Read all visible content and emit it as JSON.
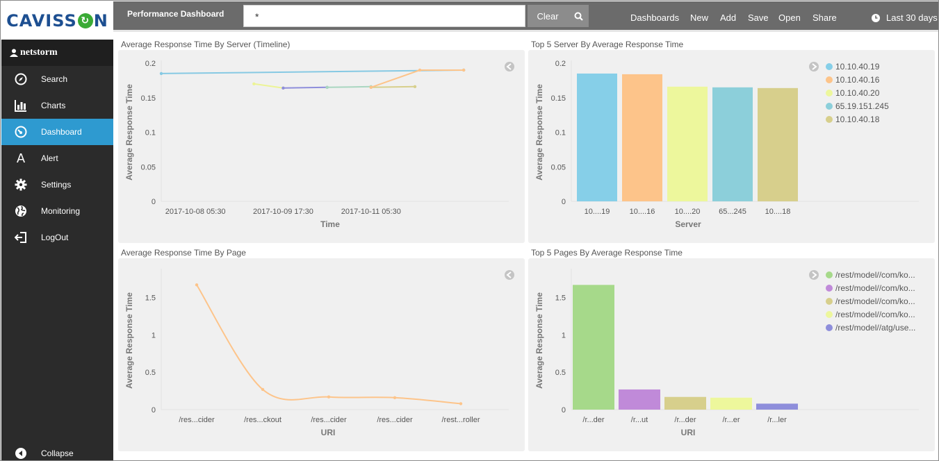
{
  "app": {
    "brand": "CAVISSON",
    "user": "netstorm"
  },
  "sidebar": {
    "items": [
      {
        "label": "Search",
        "icon": "compass-icon"
      },
      {
        "label": "Charts",
        "icon": "bar-chart-icon"
      },
      {
        "label": "Dashboard",
        "icon": "dashboard-icon",
        "active": true
      },
      {
        "label": "Alert",
        "icon": "alert-a-icon"
      },
      {
        "label": "Settings",
        "icon": "gear-icon"
      },
      {
        "label": "Monitoring",
        "icon": "globe-icon"
      },
      {
        "label": "LogOut",
        "icon": "logout-icon"
      }
    ],
    "collapse_label": "Collapse"
  },
  "topbar": {
    "title": "Performance Dashboard",
    "search_value": "*",
    "clear_label": "Clear",
    "links": [
      "Dashboards",
      "New",
      "Add",
      "Save",
      "Open",
      "Share"
    ],
    "time_range": "Last 30 days"
  },
  "colors": {
    "sidebar_bg": "#2b2b2b",
    "active_nav": "#2e9ad0",
    "topbar_bg": "#6b6b6b",
    "panel_bg": "#f0f0f0"
  },
  "panels": {
    "timeline": {
      "title": "Average Response Time By Server (Timeline)"
    },
    "top_servers": {
      "title": "Top 5 Server By Average Response Time"
    },
    "by_page": {
      "title": "Average Response Time By Page"
    },
    "top_pages": {
      "title": "Top 5 Pages By Average Response Time"
    }
  },
  "chart_data": [
    {
      "type": "line",
      "title": "Average Response Time By Server (Timeline)",
      "xlabel": "Time",
      "ylabel": "Average Response Time",
      "ylim": [
        0,
        0.2
      ],
      "yticks": [
        "0",
        "0.05",
        "0.1",
        "0.15",
        "0.2"
      ],
      "xticks": [
        "2017-10-08 05:30",
        "2017-10-09 17:30",
        "2017-10-11 05:30"
      ],
      "x_domain": [
        "2017-10-07 15:30",
        "2017-10-13 02:00"
      ],
      "series": [
        {
          "color": "#86c9e3",
          "points": [
            [
              "2017-10-07 15:30",
              0.185
            ],
            [
              "2017-10-12 19:30",
              0.19
            ]
          ]
        },
        {
          "color": "#ecf495",
          "points": [
            [
              "2017-10-09 05:30",
              0.17
            ],
            [
              "2017-10-09 17:30",
              0.164
            ]
          ]
        },
        {
          "color": "#8e8edb",
          "points": [
            [
              "2017-10-09 17:30",
              0.164
            ],
            [
              "2017-10-10 11:30",
              0.165
            ]
          ]
        },
        {
          "color": "#a9d6c0",
          "points": [
            [
              "2017-10-10 11:30",
              0.165
            ],
            [
              "2017-10-11 05:30",
              0.166
            ]
          ]
        },
        {
          "color": "#d7cf8c",
          "points": [
            [
              "2017-10-11 05:30",
              0.165
            ],
            [
              "2017-10-11 23:30",
              0.166
            ]
          ]
        },
        {
          "color": "#fdc48a",
          "points": [
            [
              "2017-10-11 05:30",
              0.165
            ],
            [
              "2017-10-12 01:30",
              0.19
            ],
            [
              "2017-10-12 19:30",
              0.19
            ]
          ]
        }
      ]
    },
    {
      "type": "bar",
      "title": "Top 5 Server By Average Response Time",
      "xlabel": "Server",
      "ylabel": "Average Response Time",
      "ylim": [
        0,
        0.2
      ],
      "yticks": [
        "0",
        "0.05",
        "0.1",
        "0.15",
        "0.2"
      ],
      "categories": [
        "10....19",
        "10....16",
        "10....20",
        "65...245",
        "10....18"
      ],
      "values": [
        0.185,
        0.184,
        0.166,
        0.165,
        0.164
      ],
      "colors": [
        "#86cfe8",
        "#fdc48a",
        "#edf79c",
        "#8ccfda",
        "#d7cf8c"
      ],
      "legend": [
        "10.10.40.19",
        "10.10.40.16",
        "10.10.40.20",
        "65.19.151.245",
        "10.10.40.18"
      ],
      "legend_position": "top-right"
    },
    {
      "type": "line",
      "title": "Average Response Time By Page",
      "xlabel": "URI",
      "ylabel": "Average Response Time",
      "ylim": [
        0,
        1.85
      ],
      "yticks": [
        "0",
        "0.5",
        "1",
        "1.5"
      ],
      "categories": [
        "/res...cider",
        "/res...ckout",
        "/res...cider",
        "/res...cider",
        "/rest...roller"
      ],
      "series": [
        {
          "color": "#fdc48a",
          "values": [
            1.67,
            0.27,
            0.17,
            0.16,
            0.08
          ]
        }
      ]
    },
    {
      "type": "bar",
      "title": "Top 5 Pages By Average Response Time",
      "xlabel": "URI",
      "ylabel": "Average Response Time",
      "ylim": [
        0,
        1.85
      ],
      "yticks": [
        "0",
        "0.5",
        "1",
        "1.5"
      ],
      "categories": [
        "/r...der",
        "/r...ut",
        "/r...der",
        "/r...er",
        "/r...ler"
      ],
      "values": [
        1.67,
        0.27,
        0.17,
        0.16,
        0.08
      ],
      "colors": [
        "#a6d98a",
        "#c08ad9",
        "#d7cf8c",
        "#edf79c",
        "#8e8edb"
      ],
      "legend": [
        "/rest/model//com/ko...",
        "/rest/model//com/ko...",
        "/rest/model//com/ko...",
        "/rest/model//com/ko...",
        "/rest/model//atg/use..."
      ],
      "legend_position": "top-right"
    }
  ]
}
